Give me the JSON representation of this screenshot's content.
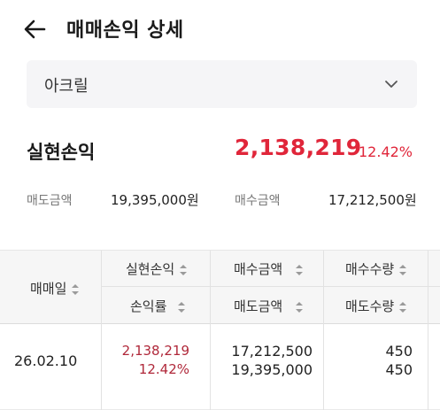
{
  "header": {
    "title": "매매손익 상세",
    "back_icon": "arrow-left-icon"
  },
  "filter": {
    "selected": "아크릴",
    "chevron_icon": "chevron-down-icon"
  },
  "summary": {
    "realized_label": "실현손익",
    "realized_value": "2,138,219",
    "realized_rate": "12.42%",
    "sell_amount_label": "매도금액",
    "sell_amount_value": "19,395,000원",
    "buy_amount_label": "매수금액",
    "buy_amount_value": "17,212,500원"
  },
  "table": {
    "headers": {
      "date": "매매일",
      "realized": "실현손익",
      "rate": "손익률",
      "buy_amount": "매수금액",
      "sell_amount": "매도금액",
      "buy_qty": "매수수량",
      "sell_qty": "매도수량"
    },
    "rows": [
      {
        "date": "26.02.10",
        "realized": "2,138,219",
        "rate": "12.42%",
        "buy_amount": "17,212,500",
        "sell_amount": "19,395,000",
        "buy_qty": "450",
        "sell_qty": "450"
      }
    ]
  },
  "colors": {
    "profit": "#e0263a",
    "profit_table": "#b0283a",
    "header_bg": "#f6f6f6",
    "select_bg": "#f5f5f7"
  }
}
